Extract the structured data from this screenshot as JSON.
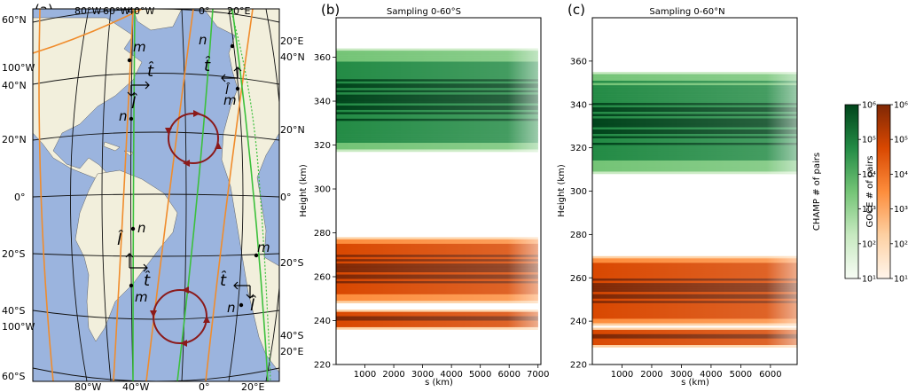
{
  "panel_labels": {
    "a": "(a)",
    "b": "(b)",
    "c": "(c)"
  },
  "map": {
    "lat_labels": [
      "60°N",
      "40°N",
      "20°N",
      "0°",
      "20°S",
      "40°S",
      "60°S"
    ],
    "lon_top": [
      "80°W",
      "60°W",
      "40°W",
      "0°",
      "20°E"
    ],
    "lon_bottom": [
      "80°W",
      "40°W",
      "0°",
      "20°E"
    ],
    "edge_labels": [
      "100°W",
      "100°W",
      "20°E",
      "40°N",
      "20°N",
      "0°",
      "20°S",
      "40°S",
      "20°E"
    ],
    "markers": [
      "m",
      "n",
      "m",
      "n",
      "n",
      "m",
      "m",
      "n"
    ],
    "vectors": [
      "t̂",
      "l̂",
      "t̂",
      "l̂",
      "t̂",
      "l̂",
      "t̂",
      "l̂"
    ],
    "colors": {
      "ocean": "#9bb4de",
      "land": "#f2efdc",
      "champ_orbit": "#3cc03c",
      "goce_orbit": "#f08c2c",
      "circulation": "#8b1a1a"
    }
  },
  "colorbars": {
    "champ_label": "CHAMP # of pairs",
    "goce_label": "GOCE # of pairs",
    "ticks": [
      "10⁶",
      "10⁵",
      "10⁴",
      "10³",
      "10²",
      "10¹"
    ],
    "champ_colors": [
      "#f7fcf5",
      "#c7e9c0",
      "#74c476",
      "#238b45",
      "#00441b"
    ],
    "goce_colors": [
      "#fff5eb",
      "#fdd0a2",
      "#fd8d3c",
      "#d94801",
      "#7f2704"
    ]
  },
  "chart_data": [
    {
      "type": "heatmap",
      "title": "Sampling 0-60°S",
      "xlabel": "s (km)",
      "ylabel": "Height (km)",
      "xlim": [
        0,
        7100
      ],
      "ylim": [
        220,
        378
      ],
      "xticks": [
        "1000",
        "2000",
        "3000",
        "4000",
        "5000",
        "6000",
        "7000"
      ],
      "yticks": [
        "220",
        "240",
        "260",
        "280",
        "300",
        "320",
        "340",
        "360"
      ],
      "log_color_scale": true,
      "series": [
        {
          "name": "CHAMP",
          "x_range": [
            0,
            7000
          ],
          "y_range": [
            317,
            364
          ]
        },
        {
          "name": "GOCE",
          "x_range": [
            0,
            7000
          ],
          "y_range": [
            248,
            278
          ]
        },
        {
          "name": "GOCE",
          "x_range": [
            0,
            7000
          ],
          "y_range": [
            236,
            245
          ]
        }
      ]
    },
    {
      "type": "heatmap",
      "title": "Sampling 0-60°N",
      "xlabel": "s (km)",
      "ylabel": "Height (km)",
      "xlim": [
        0,
        6900
      ],
      "ylim": [
        220,
        380
      ],
      "xticks": [
        "1000",
        "2000",
        "3000",
        "4000",
        "5000",
        "6000"
      ],
      "yticks": [
        "220",
        "240",
        "260",
        "280",
        "300",
        "320",
        "340",
        "360"
      ],
      "log_color_scale": true,
      "series": [
        {
          "name": "CHAMP",
          "x_range": [
            0,
            6900
          ],
          "y_range": [
            308,
            355
          ]
        },
        {
          "name": "GOCE",
          "x_range": [
            0,
            6900
          ],
          "y_range": [
            238,
            270
          ]
        },
        {
          "name": "GOCE",
          "x_range": [
            0,
            6900
          ],
          "y_range": [
            228,
            237
          ]
        }
      ]
    }
  ]
}
